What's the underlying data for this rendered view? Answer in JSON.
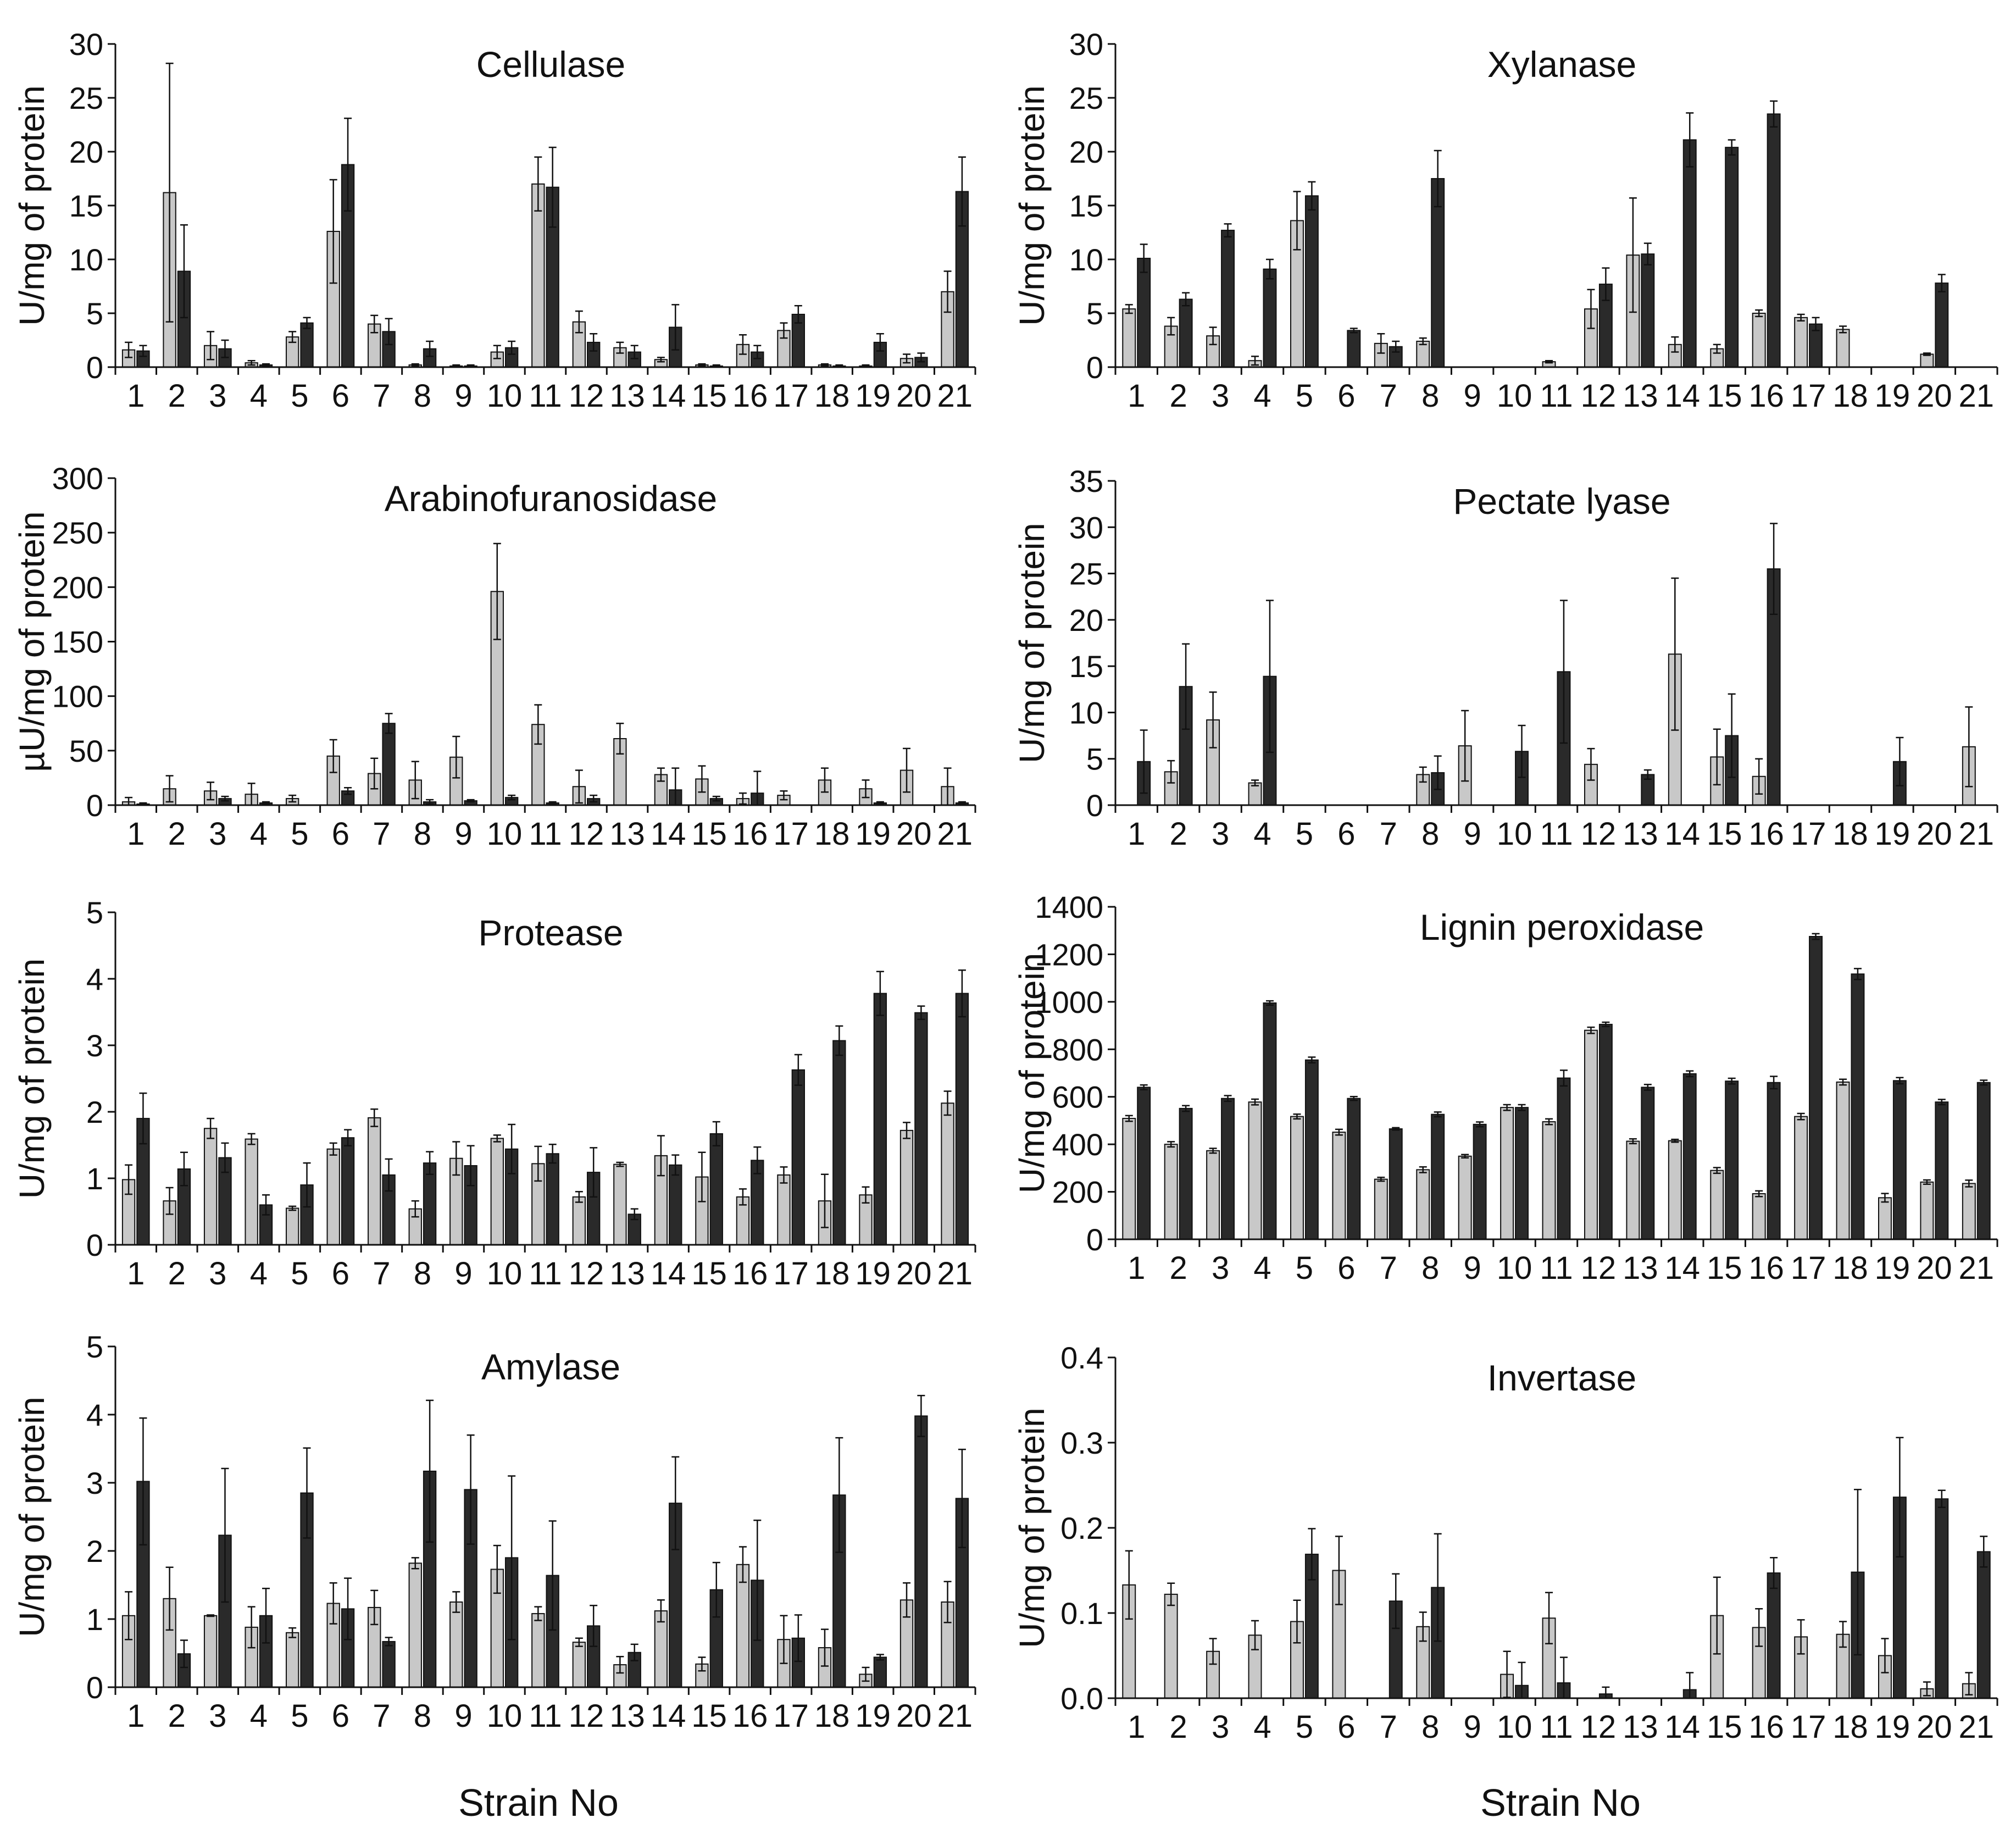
{
  "figure": {
    "x_axis_label_left": "Strain No",
    "x_axis_label_right": "Strain No",
    "colors": {
      "series1": "#c8c8c8",
      "series2": "#2a2a2a",
      "axis": "#111111"
    }
  },
  "chart_data": [
    {
      "type": "bar",
      "title": "Cellulase",
      "ylabel": "U/mg of protein",
      "xlabel": "Strain No",
      "ylim": [
        0,
        30
      ],
      "yticks": [
        "0",
        "5",
        "10",
        "15",
        "20",
        "25",
        "30"
      ],
      "categories": [
        "1",
        "2",
        "3",
        "4",
        "5",
        "6",
        "7",
        "8",
        "9",
        "10",
        "11",
        "12",
        "13",
        "14",
        "15",
        "16",
        "17",
        "18",
        "19",
        "20",
        "21"
      ],
      "series": [
        {
          "name": "series 1",
          "values": [
            1.6,
            16.2,
            2.0,
            0.4,
            2.8,
            12.6,
            4.0,
            0.2,
            0.1,
            1.4,
            17.0,
            4.2,
            1.8,
            0.7,
            0.2,
            2.1,
            3.4,
            0.2,
            0.1,
            0.8,
            7.0
          ],
          "errors": [
            0.7,
            12.0,
            1.3,
            0.2,
            0.5,
            4.8,
            0.8,
            0.1,
            0.1,
            0.6,
            2.5,
            1.0,
            0.5,
            0.2,
            0.1,
            0.9,
            0.7,
            0.1,
            0.1,
            0.4,
            1.9
          ]
        },
        {
          "name": "series 2",
          "values": [
            1.5,
            8.9,
            1.7,
            0.2,
            4.1,
            18.8,
            3.3,
            1.7,
            0.1,
            1.8,
            16.7,
            2.3,
            1.4,
            3.7,
            0.1,
            1.4,
            4.9,
            0.1,
            2.3,
            0.9,
            16.3
          ],
          "errors": [
            0.5,
            4.3,
            0.8,
            0.1,
            0.5,
            4.3,
            1.2,
            0.7,
            0.1,
            0.6,
            3.7,
            0.8,
            0.6,
            2.1,
            0.1,
            0.6,
            0.8,
            0.1,
            0.8,
            0.4,
            3.2
          ]
        }
      ]
    },
    {
      "type": "bar",
      "title": "Xylanase",
      "ylabel": "U/mg of protein",
      "xlabel": "Strain No",
      "ylim": [
        0,
        30
      ],
      "yticks": [
        "0",
        "5",
        "10",
        "15",
        "20",
        "25",
        "30"
      ],
      "categories": [
        "1",
        "2",
        "3",
        "4",
        "5",
        "6",
        "7",
        "8",
        "9",
        "10",
        "11",
        "12",
        "13",
        "14",
        "15",
        "16",
        "17",
        "18",
        "19",
        "20",
        "21"
      ],
      "series": [
        {
          "name": "series 1",
          "values": [
            5.4,
            3.8,
            2.9,
            0.6,
            13.6,
            0,
            2.2,
            2.4,
            0,
            0,
            0.5,
            5.4,
            10.4,
            2.1,
            1.7,
            5.0,
            4.6,
            3.5,
            0,
            1.2,
            0
          ],
          "errors": [
            0.4,
            0.8,
            0.8,
            0.4,
            2.7,
            0,
            0.9,
            0.3,
            0,
            0,
            0.1,
            1.8,
            5.3,
            0.7,
            0.4,
            0.3,
            0.3,
            0.3,
            0,
            0.1,
            0
          ]
        },
        {
          "name": "series 2",
          "values": [
            10.1,
            6.3,
            12.7,
            9.1,
            15.9,
            3.4,
            1.9,
            17.5,
            0,
            0,
            0,
            7.7,
            10.5,
            21.1,
            20.4,
            23.5,
            4.0,
            0,
            0,
            7.8,
            0
          ],
          "errors": [
            1.3,
            0.6,
            0.6,
            0.9,
            1.3,
            0.2,
            0.5,
            2.6,
            0,
            0,
            0,
            1.5,
            1.0,
            2.5,
            0.7,
            1.2,
            0.6,
            0,
            0,
            0.8,
            0
          ]
        }
      ]
    },
    {
      "type": "bar",
      "title": "Arabinofuranosidase",
      "ylabel": "µU/mg of protein",
      "xlabel": "Strain No",
      "ylim": [
        0,
        300
      ],
      "yticks": [
        "0",
        "50",
        "100",
        "150",
        "200",
        "250",
        "300"
      ],
      "categories": [
        "1",
        "2",
        "3",
        "4",
        "5",
        "6",
        "7",
        "8",
        "9",
        "10",
        "11",
        "12",
        "13",
        "14",
        "15",
        "16",
        "17",
        "18",
        "19",
        "20",
        "21"
      ],
      "series": [
        {
          "name": "series 1",
          "values": [
            3,
            15,
            13,
            10,
            6,
            45,
            29,
            23,
            44,
            196,
            74,
            17,
            61,
            28,
            24,
            6,
            9,
            23,
            15,
            32,
            17
          ],
          "errors": [
            4,
            12,
            8,
            10,
            3,
            15,
            14,
            17,
            19,
            44,
            18,
            15,
            14,
            6,
            12,
            5,
            4,
            11,
            8,
            20,
            17
          ]
        },
        {
          "name": "series 2",
          "values": [
            1,
            0,
            6,
            2,
            0,
            13,
            75,
            3,
            4,
            7,
            2,
            6,
            0,
            14,
            6,
            11,
            0,
            0,
            2,
            0,
            2
          ],
          "errors": [
            1,
            0,
            2,
            1,
            0,
            3,
            9,
            2,
            1,
            2,
            1,
            3,
            0,
            20,
            2,
            20,
            0,
            0,
            1,
            0,
            1
          ]
        }
      ]
    },
    {
      "type": "bar",
      "title": "Pectate lyase",
      "ylabel": "U/mg of protein",
      "xlabel": "Strain No",
      "ylim": [
        0,
        35
      ],
      "yticks": [
        "0",
        "5",
        "10",
        "15",
        "20",
        "25",
        "30",
        "35"
      ],
      "categories": [
        "1",
        "2",
        "3",
        "4",
        "5",
        "6",
        "7",
        "8",
        "9",
        "10",
        "11",
        "12",
        "13",
        "14",
        "15",
        "16",
        "17",
        "18",
        "19",
        "20",
        "21"
      ],
      "series": [
        {
          "name": "series 1",
          "values": [
            0,
            3.6,
            9.2,
            2.4,
            0,
            0,
            0,
            3.3,
            6.4,
            0,
            0,
            4.4,
            0,
            16.3,
            5.2,
            3.1,
            0,
            0,
            0,
            0,
            6.3
          ],
          "errors": [
            0,
            1.2,
            3.0,
            0.3,
            0,
            0,
            0,
            0.8,
            3.8,
            0,
            0,
            1.7,
            0,
            8.2,
            3.0,
            1.9,
            0,
            0,
            0,
            0,
            4.3
          ]
        },
        {
          "name": "series 2",
          "values": [
            4.7,
            12.8,
            0,
            13.9,
            0,
            0,
            0,
            3.5,
            0,
            5.8,
            14.4,
            0,
            3.3,
            0,
            7.5,
            25.5,
            0,
            0,
            4.7,
            0,
            0
          ],
          "errors": [
            3.4,
            4.6,
            0,
            8.2,
            0,
            0,
            0,
            1.8,
            0,
            2.8,
            7.7,
            0,
            0.5,
            0,
            4.5,
            4.9,
            0,
            0,
            2.6,
            0,
            0
          ]
        }
      ]
    },
    {
      "type": "bar",
      "title": "Protease",
      "ylabel": "U/mg of protein",
      "xlabel": "Strain No",
      "ylim": [
        0,
        5
      ],
      "yticks": [
        "0",
        "1",
        "2",
        "3",
        "4",
        "5"
      ],
      "categories": [
        "1",
        "2",
        "3",
        "4",
        "5",
        "6",
        "7",
        "8",
        "9",
        "10",
        "11",
        "12",
        "13",
        "14",
        "15",
        "16",
        "17",
        "18",
        "19",
        "20",
        "21"
      ],
      "series": [
        {
          "name": "series 1",
          "values": [
            0.98,
            0.66,
            1.75,
            1.59,
            0.55,
            1.44,
            1.91,
            0.54,
            1.3,
            1.6,
            1.22,
            0.72,
            1.21,
            1.34,
            1.02,
            0.72,
            1.05,
            0.66,
            0.75,
            1.72,
            2.13
          ],
          "errors": [
            0.22,
            0.2,
            0.15,
            0.08,
            0.03,
            0.09,
            0.13,
            0.12,
            0.25,
            0.05,
            0.26,
            0.08,
            0.03,
            0.3,
            0.37,
            0.12,
            0.12,
            0.4,
            0.12,
            0.12,
            0.18
          ]
        },
        {
          "name": "series 2",
          "values": [
            1.9,
            1.14,
            1.31,
            0.6,
            0.9,
            1.61,
            1.05,
            1.23,
            1.19,
            1.44,
            1.37,
            1.09,
            0.46,
            1.2,
            1.67,
            1.27,
            2.63,
            3.07,
            3.78,
            3.49,
            3.78
          ],
          "errors": [
            0.38,
            0.25,
            0.22,
            0.15,
            0.33,
            0.12,
            0.24,
            0.17,
            0.3,
            0.37,
            0.14,
            0.37,
            0.08,
            0.15,
            0.18,
            0.2,
            0.23,
            0.22,
            0.33,
            0.1,
            0.35
          ]
        }
      ]
    },
    {
      "type": "bar",
      "title": "Lignin peroxidase",
      "ylabel": "U/mg of protein",
      "xlabel": "Strain No",
      "ylim": [
        0,
        1400
      ],
      "yticks": [
        "0",
        "200",
        "400",
        "600",
        "800",
        "1000",
        "1200",
        "1400"
      ],
      "categories": [
        "1",
        "2",
        "3",
        "4",
        "5",
        "6",
        "7",
        "8",
        "9",
        "10",
        "11",
        "12",
        "13",
        "14",
        "15",
        "16",
        "17",
        "18",
        "19",
        "20",
        "21"
      ],
      "series": [
        {
          "name": "series 1",
          "values": [
            509,
            400,
            373,
            578,
            517,
            451,
            253,
            293,
            350,
            555,
            495,
            880,
            413,
            415,
            290,
            192,
            517,
            662,
            175,
            241,
            235
          ],
          "errors": [
            12,
            11,
            10,
            12,
            10,
            12,
            8,
            12,
            7,
            12,
            12,
            13,
            10,
            6,
            12,
            12,
            13,
            12,
            18,
            9,
            14
          ]
        },
        {
          "name": "series 2",
          "values": [
            640,
            551,
            593,
            995,
            755,
            593,
            465,
            526,
            484,
            555,
            679,
            905,
            640,
            697,
            666,
            660,
            1275,
            1117,
            668,
            578,
            660
          ],
          "errors": [
            10,
            12,
            12,
            9,
            12,
            8,
            5,
            10,
            10,
            12,
            33,
            9,
            12,
            12,
            12,
            26,
            12,
            23,
            13,
            11,
            10
          ]
        }
      ]
    },
    {
      "type": "bar",
      "title": "Amylase",
      "ylabel": "U/mg of protein",
      "xlabel": "Strain No",
      "ylim": [
        0,
        5
      ],
      "yticks": [
        "0",
        "1",
        "2",
        "3",
        "4",
        "5"
      ],
      "categories": [
        "1",
        "2",
        "3",
        "4",
        "5",
        "6",
        "7",
        "8",
        "9",
        "10",
        "11",
        "12",
        "13",
        "14",
        "15",
        "16",
        "17",
        "18",
        "19",
        "20",
        "21"
      ],
      "series": [
        {
          "name": "series 1",
          "values": [
            1.05,
            1.3,
            1.05,
            0.88,
            0.8,
            1.23,
            1.17,
            1.82,
            1.25,
            1.73,
            1.08,
            0.66,
            0.33,
            1.12,
            0.34,
            1.8,
            0.7,
            0.58,
            0.19,
            1.28,
            1.25
          ],
          "errors": [
            0.35,
            0.46,
            0.01,
            0.3,
            0.07,
            0.3,
            0.25,
            0.08,
            0.15,
            0.35,
            0.1,
            0.06,
            0.12,
            0.16,
            0.1,
            0.26,
            0.35,
            0.27,
            0.1,
            0.25,
            0.3
          ]
        },
        {
          "name": "series 2",
          "values": [
            3.02,
            0.49,
            2.23,
            1.05,
            2.85,
            1.15,
            0.67,
            3.17,
            2.9,
            1.9,
            1.64,
            0.9,
            0.51,
            2.7,
            1.43,
            1.57,
            0.72,
            2.82,
            0.44,
            3.98,
            2.77
          ],
          "errors": [
            0.93,
            0.2,
            0.98,
            0.4,
            0.66,
            0.45,
            0.06,
            1.04,
            0.8,
            1.2,
            0.8,
            0.3,
            0.12,
            0.68,
            0.4,
            0.88,
            0.34,
            0.84,
            0.04,
            0.3,
            0.72
          ]
        }
      ]
    },
    {
      "type": "bar",
      "title": "Invertase",
      "ylabel": "U/mg of protein",
      "xlabel": "Strain No",
      "ylim": [
        0,
        0.4
      ],
      "yticks": [
        "0.0",
        "0.1",
        "0.2",
        "0.3",
        "0.4"
      ],
      "categories": [
        "1",
        "2",
        "3",
        "4",
        "5",
        "6",
        "7",
        "8",
        "9",
        "10",
        "11",
        "12",
        "13",
        "14",
        "15",
        "16",
        "17",
        "18",
        "19",
        "20",
        "21"
      ],
      "series": [
        {
          "name": "series 1",
          "values": [
            0.133,
            0.122,
            0.055,
            0.074,
            0.09,
            0.15,
            0,
            0.084,
            0,
            0.028,
            0.094,
            0,
            0,
            0,
            0.097,
            0.083,
            0.072,
            0.075,
            0.05,
            0.011,
            0.017
          ],
          "errors": [
            0.04,
            0.013,
            0.015,
            0.017,
            0.025,
            0.04,
            0,
            0.017,
            0,
            0.027,
            0.03,
            0,
            0,
            0,
            0.045,
            0.022,
            0.02,
            0.015,
            0.02,
            0.008,
            0.013
          ]
        },
        {
          "name": "series 2",
          "values": [
            0,
            0,
            0,
            0,
            0.169,
            0,
            0.114,
            0.13,
            0,
            0.015,
            0.018,
            0.005,
            0,
            0.01,
            0,
            0.147,
            0,
            0.148,
            0.236,
            0.234,
            0.172
          ],
          "errors": [
            0,
            0,
            0,
            0,
            0.03,
            0,
            0.032,
            0.063,
            0,
            0.027,
            0.03,
            0.008,
            0,
            0.02,
            0,
            0.018,
            0,
            0.097,
            0.07,
            0.01,
            0.018
          ]
        }
      ]
    }
  ]
}
